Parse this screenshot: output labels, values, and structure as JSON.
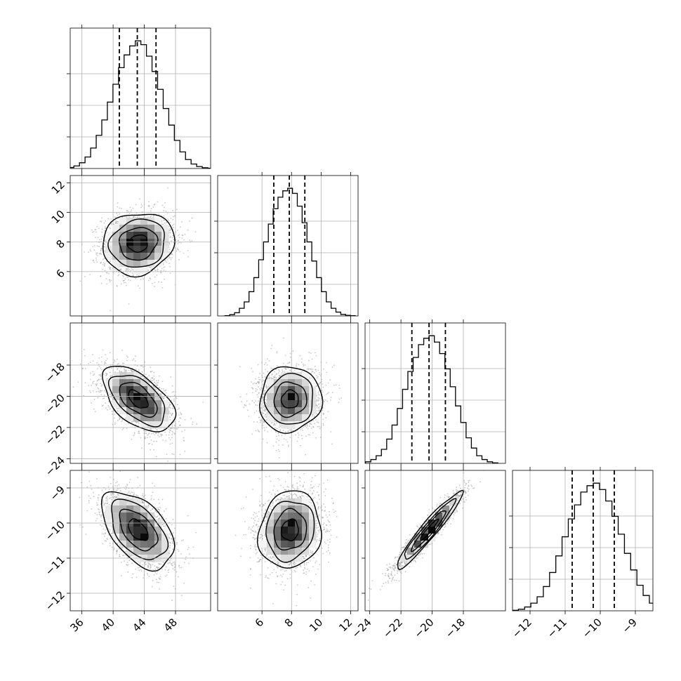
{
  "chart_data": {
    "type": "corner",
    "title": "",
    "grid": true,
    "colors": {
      "ink": "#000000",
      "grid": "#b0b0b0",
      "scatter": "#9a9a9a"
    },
    "params": [
      {
        "range": [
          34.5,
          52.5
        ],
        "ticks": [
          36,
          40,
          44,
          48
        ],
        "tick_labels": [
          "36",
          "40",
          "44",
          "48"
        ],
        "mean": 43.2,
        "sigma": 2.3,
        "quantiles": [
          40.8,
          43.1,
          45.5
        ],
        "hist": [
          0.003,
          0.008,
          0.02,
          0.045,
          0.09,
          0.16,
          0.26,
          0.38,
          0.52,
          0.66,
          0.79,
          0.89,
          0.96,
          1.0,
          0.97,
          0.88,
          0.76,
          0.62,
          0.47,
          0.34,
          0.22,
          0.13,
          0.07,
          0.035,
          0.015,
          0.006,
          0.002
        ]
      },
      {
        "range": [
          3.0,
          12.5
        ],
        "ticks": [
          6,
          8,
          10,
          12
        ],
        "tick_labels": [
          "6",
          "8",
          "10",
          "12"
        ],
        "mean": 7.9,
        "sigma": 1.05,
        "quantiles": [
          6.8,
          7.85,
          8.9
        ],
        "hist": [
          0.002,
          0.01,
          0.025,
          0.06,
          0.11,
          0.19,
          0.3,
          0.44,
          0.58,
          0.72,
          0.84,
          0.93,
          0.98,
          1.0,
          0.96,
          0.86,
          0.73,
          0.58,
          0.43,
          0.3,
          0.19,
          0.11,
          0.06,
          0.03,
          0.012,
          0.005,
          0.002
        ]
      },
      {
        "range": [
          -24.3,
          -15.3
        ],
        "ticks": [
          -24,
          -22,
          -20,
          -18
        ],
        "tick_labels": [
          "−24",
          "−22",
          "−20",
          "−18"
        ],
        "mean": -20.2,
        "sigma": 1.05,
        "quantiles": [
          -21.3,
          -20.2,
          -19.15
        ],
        "hist": [
          0.004,
          0.012,
          0.03,
          0.06,
          0.11,
          0.19,
          0.3,
          0.43,
          0.58,
          0.72,
          0.83,
          0.93,
          0.98,
          1.0,
          0.95,
          0.86,
          0.74,
          0.6,
          0.45,
          0.32,
          0.2,
          0.12,
          0.06,
          0.03,
          0.012,
          0.004
        ]
      },
      {
        "range": [
          -12.5,
          -8.5
        ],
        "ticks": [
          -12,
          -11,
          -10,
          -9
        ],
        "tick_labels": [
          "−12",
          "−11",
          "−10",
          "−9"
        ],
        "mean": -10.2,
        "sigma": 0.55,
        "quantiles": [
          -10.8,
          -10.2,
          -9.6
        ],
        "hist": [
          0.004,
          0.012,
          0.03,
          0.06,
          0.11,
          0.19,
          0.3,
          0.43,
          0.58,
          0.72,
          0.83,
          0.93,
          0.98,
          1.0,
          0.95,
          0.86,
          0.74,
          0.6,
          0.45,
          0.32,
          0.2,
          0.12,
          0.06,
          0.03,
          0.012,
          0.004
        ]
      }
    ],
    "correlations": [
      {
        "row": 1,
        "col": 0,
        "rho": 0.1
      },
      {
        "row": 2,
        "col": 0,
        "rho": -0.55
      },
      {
        "row": 2,
        "col": 1,
        "rho": 0.05
      },
      {
        "row": 3,
        "col": 0,
        "rho": -0.5
      },
      {
        "row": 3,
        "col": 1,
        "rho": 0.1
      },
      {
        "row": 3,
        "col": 2,
        "rho": 0.95
      }
    ]
  }
}
